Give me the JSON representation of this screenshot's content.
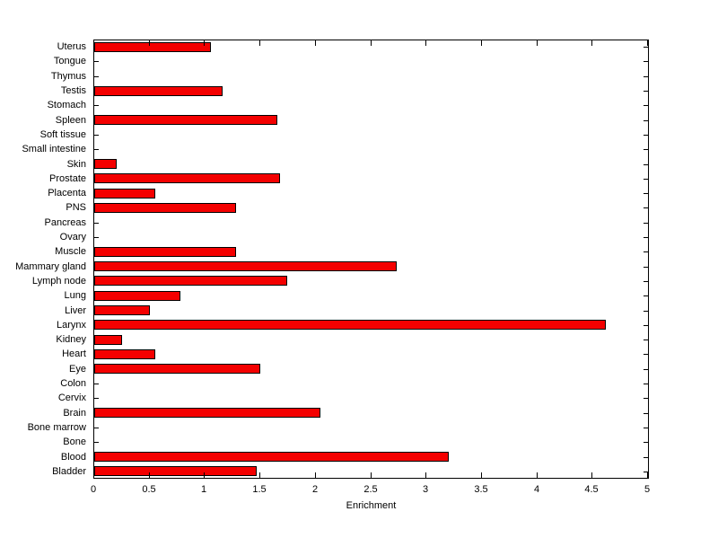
{
  "chart_data": {
    "type": "bar",
    "orientation": "horizontal",
    "title": "",
    "xlabel": "Enrichment",
    "ylabel": "",
    "xlim": [
      0,
      5
    ],
    "grid": false,
    "legend": "none",
    "bar_color": "#f40000",
    "bar_edge_color": "#000000",
    "axis_color": "#000000",
    "background_color": "#ffffff",
    "xticks": [
      0,
      0.5,
      1,
      1.5,
      2,
      2.5,
      3,
      3.5,
      4,
      4.5,
      5
    ],
    "xtick_labels": [
      "0",
      "0.5",
      "1",
      "1.5",
      "2",
      "2.5",
      "3",
      "3.5",
      "4",
      "4.5",
      "5"
    ],
    "categories": [
      "Uterus",
      "Tongue",
      "Thymus",
      "Testis",
      "Stomach",
      "Spleen",
      "Soft tissue",
      "Small intestine",
      "Skin",
      "Prostate",
      "Placenta",
      "PNS",
      "Pancreas",
      "Ovary",
      "Muscle",
      "Mammary gland",
      "Lymph node",
      "Lung",
      "Liver",
      "Larynx",
      "Kidney",
      "Heart",
      "Eye",
      "Colon",
      "Cervix",
      "Brain",
      "Bone marrow",
      "Bone",
      "Blood",
      "Bladder"
    ],
    "values": [
      1.05,
      0,
      0,
      1.16,
      0,
      1.65,
      0,
      0,
      0.2,
      1.68,
      0.55,
      1.28,
      0,
      0,
      1.28,
      2.73,
      1.74,
      0.78,
      0.5,
      4.62,
      0.25,
      0.55,
      1.5,
      0,
      0,
      2.04,
      0,
      0,
      3.2,
      1.47
    ]
  }
}
